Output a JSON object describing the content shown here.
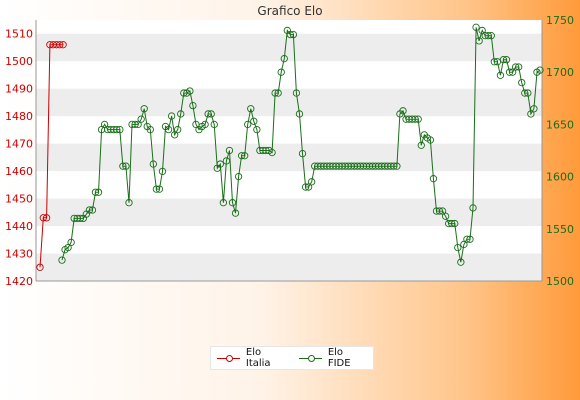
{
  "chart_data": {
    "type": "line",
    "title": "Grafico Elo",
    "left_axis": {
      "ylim": [
        1420,
        1515
      ],
      "ticks": [
        1420,
        1430,
        1440,
        1450,
        1460,
        1470,
        1480,
        1490,
        1500,
        1510
      ],
      "color": "#cc0000"
    },
    "right_axis": {
      "ylim": [
        1500,
        1750
      ],
      "ticks": [
        1500,
        1550,
        1600,
        1650,
        1700,
        1750
      ],
      "color": "#1a6e1a"
    },
    "grid": "horizontal bands",
    "legend_position": "bottom",
    "series": [
      {
        "name": "Elo Italia",
        "axis": "left",
        "color": "#cc0000",
        "values": [
          1425,
          1443,
          1443,
          1506,
          1506,
          1506,
          1506,
          1506
        ]
      },
      {
        "name": "Elo FIDE",
        "axis": "right",
        "color": "#1a6e1a",
        "values": [
          1520,
          1530,
          1532,
          1537,
          1560,
          1560,
          1560,
          1560,
          1564,
          1568,
          1568,
          1585,
          1585,
          1645,
          1650,
          1645,
          1645,
          1645,
          1645,
          1645,
          1610,
          1610,
          1575,
          1650,
          1650,
          1650,
          1655,
          1665,
          1648,
          1645,
          1612,
          1588,
          1588,
          1605,
          1648,
          1645,
          1658,
          1640,
          1645,
          1660,
          1680,
          1680,
          1682,
          1668,
          1650,
          1645,
          1648,
          1650,
          1660,
          1660,
          1650,
          1608,
          1612,
          1575,
          1615,
          1625,
          1575,
          1565,
          1600,
          1620,
          1620,
          1650,
          1665,
          1653,
          1645,
          1625,
          1625,
          1625,
          1625,
          1623,
          1680,
          1680,
          1700,
          1713,
          1740,
          1736,
          1736,
          1680,
          1660,
          1622,
          1590,
          1590,
          1595,
          1610,
          1610,
          1610,
          1610,
          1610,
          1610,
          1610,
          1610,
          1610,
          1610,
          1610,
          1610,
          1610,
          1610,
          1610,
          1610,
          1610,
          1610,
          1610,
          1610,
          1610,
          1610,
          1610,
          1610,
          1610,
          1610,
          1610,
          1610,
          1660,
          1663,
          1655,
          1655,
          1655,
          1655,
          1655,
          1630,
          1640,
          1637,
          1635,
          1598,
          1567,
          1567,
          1567,
          1562,
          1555,
          1555,
          1555,
          1532,
          1518,
          1535,
          1540,
          1540,
          1570,
          1743,
          1730,
          1740,
          1735,
          1735,
          1735,
          1710,
          1710,
          1697,
          1712,
          1712,
          1700,
          1700,
          1705,
          1705,
          1690,
          1680,
          1680,
          1660,
          1665,
          1700,
          1702
        ]
      }
    ]
  }
}
